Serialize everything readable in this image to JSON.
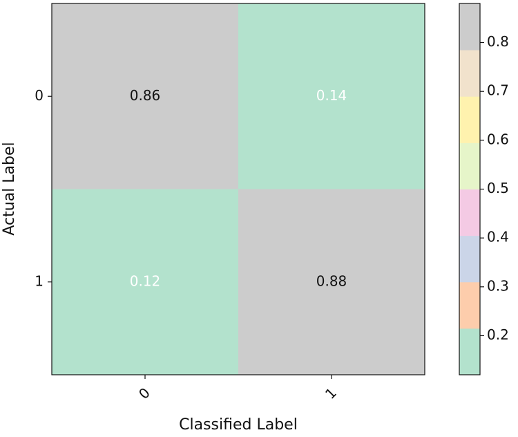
{
  "chart_data": {
    "type": "heatmap",
    "xlabel": "Classified Label",
    "ylabel": "Actual Label",
    "x_categories": [
      "0",
      "1"
    ],
    "y_categories": [
      "0",
      "1"
    ],
    "values": [
      [
        0.86,
        0.14
      ],
      [
        0.12,
        0.88
      ]
    ],
    "clim": [
      0.12,
      0.88
    ],
    "colorbar_ticks": [
      0.2,
      0.3,
      0.4,
      0.5,
      0.6,
      0.7,
      0.8
    ],
    "colormap": [
      "#b3e2cd",
      "#fdcdac",
      "#cbd5e8",
      "#f4cae4",
      "#e6f5c9",
      "#fff2ae",
      "#f1e2cc",
      "#cccccc"
    ]
  }
}
